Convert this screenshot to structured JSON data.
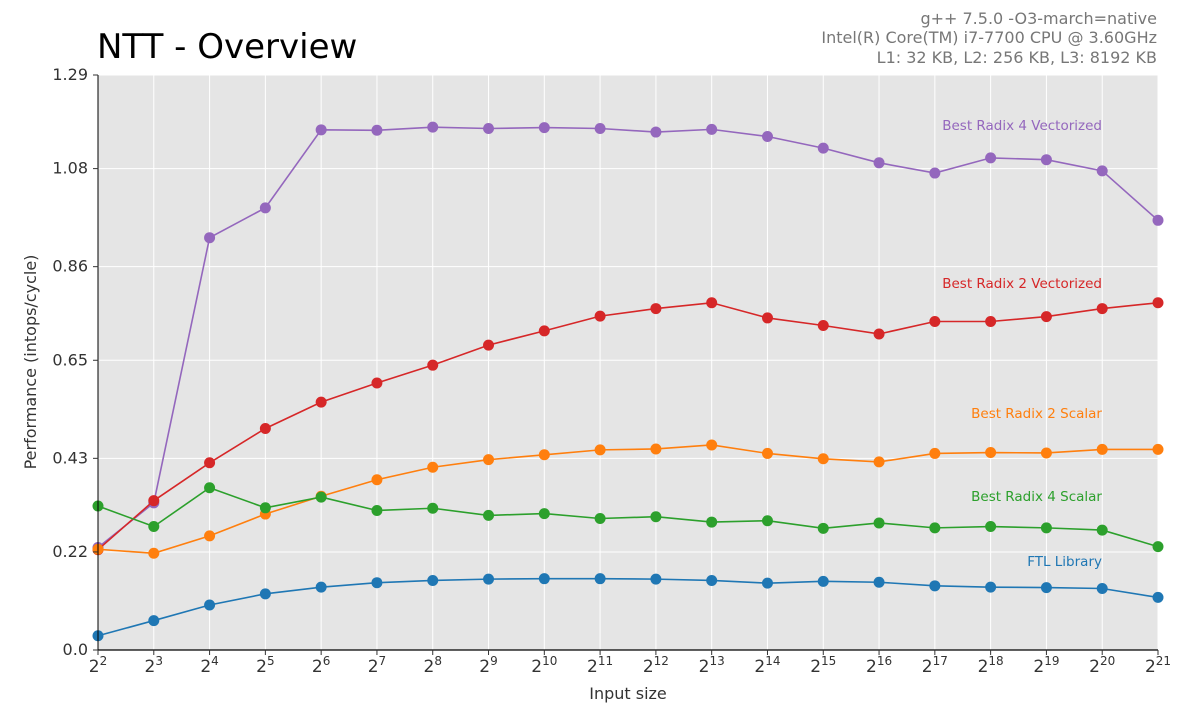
{
  "header": {
    "title": "NTT - Overview",
    "environment": [
      "g++ 7.5.0 -O3-march=native",
      "Intel(R) Core(TM) i7-7700 CPU @ 3.60GHz",
      "L1: 32 KB, L2: 256 KB, L3: 8192 KB"
    ]
  },
  "chart_data": {
    "type": "line",
    "title": "NTT - Overview",
    "xlabel": "Input size",
    "ylabel": "Performance (intops/cycle)",
    "x_base": "2",
    "x_exponents": [
      2,
      3,
      4,
      5,
      6,
      7,
      8,
      9,
      10,
      11,
      12,
      13,
      14,
      15,
      16,
      17,
      18,
      19,
      20,
      21
    ],
    "xlim": [
      2,
      21
    ],
    "ylim": [
      0,
      1.29
    ],
    "y_ticks": [
      0.0,
      0.22,
      0.43,
      0.65,
      0.86,
      1.08,
      1.29
    ],
    "y_tick_labels": [
      "0.0",
      "0.22",
      "0.43",
      "0.65",
      "0.86",
      "1.08",
      "1.29"
    ],
    "grid": true,
    "legend": "inline labels at right",
    "series": [
      {
        "name": "Best Radix 4 Vectorized",
        "color": "#9467bd",
        "values": [
          0.23,
          0.33,
          0.925,
          0.992,
          1.167,
          1.166,
          1.173,
          1.17,
          1.172,
          1.17,
          1.162,
          1.168,
          1.152,
          1.126,
          1.093,
          1.07,
          1.104,
          1.1,
          1.075,
          0.964
        ]
      },
      {
        "name": "Best Radix 2 Vectorized",
        "color": "#d62728",
        "values": [
          0.225,
          0.335,
          0.42,
          0.497,
          0.556,
          0.599,
          0.639,
          0.684,
          0.716,
          0.749,
          0.766,
          0.779,
          0.745,
          0.728,
          0.709,
          0.737,
          0.737,
          0.748,
          0.766,
          0.779
        ]
      },
      {
        "name": "Best Radix 2 Scalar",
        "color": "#ff7f0e",
        "values": [
          0.226,
          0.217,
          0.256,
          0.305,
          0.345,
          0.382,
          0.41,
          0.427,
          0.438,
          0.449,
          0.451,
          0.46,
          0.441,
          0.429,
          0.422,
          0.441,
          0.443,
          0.442,
          0.45,
          0.45
        ]
      },
      {
        "name": "Best Radix 4 Scalar",
        "color": "#2ca02c",
        "values": [
          0.323,
          0.277,
          0.364,
          0.319,
          0.343,
          0.313,
          0.318,
          0.302,
          0.306,
          0.295,
          0.299,
          0.287,
          0.29,
          0.273,
          0.285,
          0.274,
          0.277,
          0.274,
          0.269,
          0.232
        ]
      },
      {
        "name": "FTL Library",
        "color": "#1f77b4",
        "values": [
          0.032,
          0.066,
          0.101,
          0.126,
          0.141,
          0.151,
          0.156,
          0.159,
          0.16,
          0.16,
          0.159,
          0.156,
          0.15,
          0.154,
          0.152,
          0.144,
          0.141,
          0.14,
          0.138,
          0.118
        ]
      }
    ]
  }
}
